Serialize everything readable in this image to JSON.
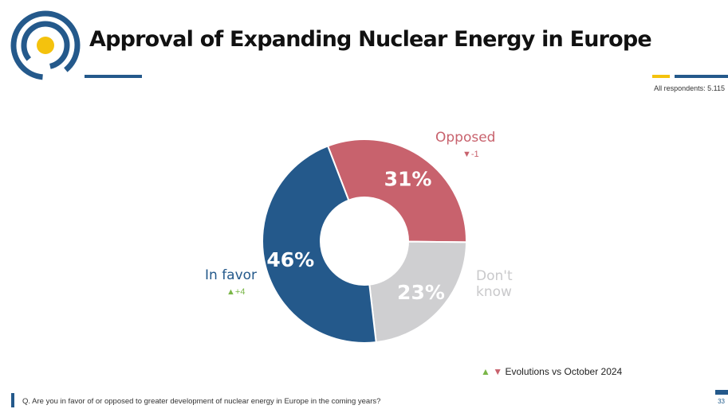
{
  "header": {
    "title": "Approval of Expanding Nuclear Energy in Europe",
    "respondents": "All respondents: 5.115"
  },
  "colors": {
    "brand_blue": "#24598b",
    "accent_yellow": "#f4c20d",
    "opposed": "#c8626d",
    "dont_know": "#cfcfd1",
    "increase": "#7ab648",
    "decrease": "#c8626d"
  },
  "chart_data": {
    "type": "pie",
    "title": "Approval of Expanding Nuclear Energy in Europe",
    "donut": true,
    "slices": [
      {
        "label": "Opposed",
        "value": 31,
        "display": "31%",
        "change": "-1",
        "direction": "down",
        "color": "#c8626d"
      },
      {
        "label": "Don't know",
        "label_lines": [
          "Don't",
          "know"
        ],
        "value": 23,
        "display": "23%",
        "change": "",
        "direction": "",
        "color": "#cfcfd1"
      },
      {
        "label": "In favor",
        "value": 46,
        "display": "46%",
        "change": "+4",
        "direction": "up",
        "color": "#24598b"
      }
    ],
    "legend_note": "Evolutions vs October 2024"
  },
  "footer": {
    "question": "Q. Are you in favor of or opposed to greater development of nuclear energy in Europe in the coming years?",
    "page_number": "33"
  },
  "icons": {
    "logo": "target-logo-icon",
    "up": "triangle-up-icon",
    "down": "triangle-down-icon"
  }
}
